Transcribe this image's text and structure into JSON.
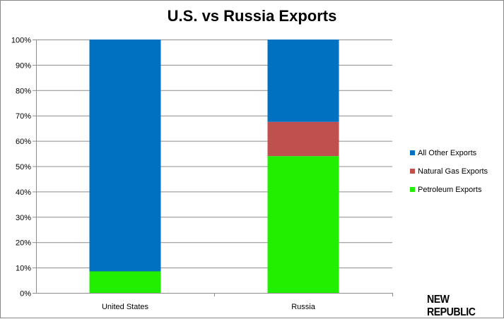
{
  "chart_data": {
    "type": "bar",
    "stacked": true,
    "percent": true,
    "title": "U.S. vs Russia Exports",
    "xlabel": "",
    "ylabel": "",
    "categories": [
      "United States",
      "Russia"
    ],
    "series": [
      {
        "name": "Petroleum Exports",
        "values": [
          8.5,
          54
        ],
        "color": "#22ee00"
      },
      {
        "name": "Natural Gas Exports",
        "values": [
          0,
          13.5
        ],
        "color": "#c0504d"
      },
      {
        "name": "All Other Exports",
        "values": [
          91.5,
          32.5
        ],
        "color": "#0070c0"
      }
    ],
    "ylim": [
      0,
      100
    ],
    "yticks": [
      "0%",
      "10%",
      "20%",
      "30%",
      "40%",
      "50%",
      "60%",
      "70%",
      "80%",
      "90%",
      "100%"
    ],
    "grid": true,
    "legend_position": "right",
    "legend_order": [
      "All Other Exports",
      "Natural Gas Exports",
      "Petroleum Exports"
    ]
  },
  "watermark": "NEW REPUBLIC"
}
